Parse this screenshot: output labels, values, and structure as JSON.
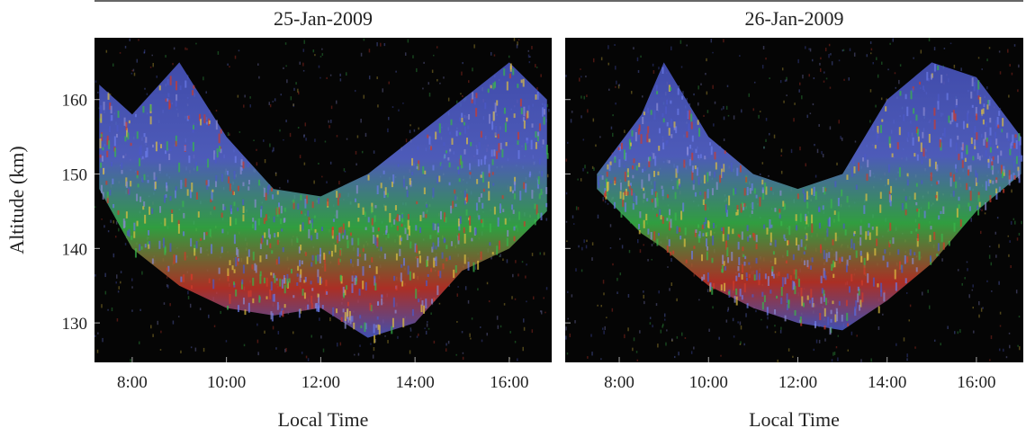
{
  "chart_data": [
    {
      "type": "area",
      "title": "25-Jan-2009",
      "xlabel": "Local Time",
      "ylabel": "Altitude (km)",
      "x": [
        7.3,
        8,
        9,
        10,
        11,
        12,
        13,
        14,
        15,
        16,
        16.8
      ],
      "upper": [
        162,
        158,
        165,
        155,
        148,
        147,
        150,
        155,
        160,
        165,
        160
      ],
      "lower": [
        148,
        140,
        135,
        132,
        131,
        132,
        128,
        130,
        137,
        140,
        145
      ],
      "xlim": [
        7.2,
        16.9
      ],
      "ylim": [
        124.7,
        168.3
      ],
      "xticks": [
        {
          "value": 8,
          "label": "8:00"
        },
        {
          "value": 10,
          "label": "10:00"
        },
        {
          "value": 12,
          "label": "12:00"
        },
        {
          "value": 14,
          "label": "14:00"
        },
        {
          "value": 16,
          "label": "16:00"
        }
      ],
      "yticks": [
        130,
        140,
        150,
        160
      ]
    },
    {
      "type": "area",
      "title": "26-Jan-2009",
      "xlabel": "Local Time",
      "x": [
        7.5,
        8.5,
        9,
        10,
        11,
        12,
        13,
        14,
        15,
        16,
        17
      ],
      "upper": [
        150,
        158,
        165,
        155,
        150,
        148,
        150,
        160,
        165,
        163,
        155
      ],
      "lower": [
        148,
        142,
        140,
        135,
        132,
        130,
        129,
        133,
        138,
        145,
        150
      ],
      "xlim": [
        6.79,
        17.05
      ],
      "ylim": [
        124.7,
        168.3
      ],
      "xticks": [
        {
          "value": 8,
          "label": "8:00"
        },
        {
          "value": 10,
          "label": "10:00"
        },
        {
          "value": 12,
          "label": "12:00"
        },
        {
          "value": 14,
          "label": "14:00"
        },
        {
          "value": 16,
          "label": "16:00"
        }
      ],
      "yticks": [
        130,
        140,
        150,
        160
      ]
    }
  ]
}
